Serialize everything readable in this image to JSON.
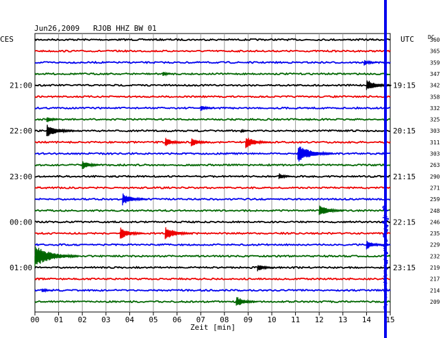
{
  "chart_data": {
    "type": "line",
    "title": "Jun26,2009   RJOB HHZ BW 01",
    "xlabel": "Zeit [min]",
    "left_label": "CES",
    "right_label": "UTC",
    "dc_header": "DC",
    "x_ticks": [
      "00",
      "01",
      "02",
      "03",
      "04",
      "05",
      "06",
      "07",
      "08",
      "09",
      "10",
      "11",
      "12",
      "13",
      "14",
      "15"
    ],
    "xlim": [
      0,
      15
    ],
    "left_time_labels": [
      {
        "trace": 4,
        "label": "21:00"
      },
      {
        "trace": 8,
        "label": "22:00"
      },
      {
        "trace": 12,
        "label": "23:00"
      },
      {
        "trace": 16,
        "label": "00:00"
      },
      {
        "trace": 20,
        "label": "01:00"
      }
    ],
    "right_time_labels": [
      {
        "trace": 4,
        "label": "19:15"
      },
      {
        "trace": 8,
        "label": "20:15"
      },
      {
        "trace": 12,
        "label": "21:15"
      },
      {
        "trace": 16,
        "label": "22:15"
      },
      {
        "trace": 20,
        "label": "23:15"
      }
    ],
    "trace_colors": [
      "#000000",
      "#ee0000",
      "#0000ee",
      "#006600"
    ],
    "dc_values": [
      "360",
      "365",
      "359",
      "347",
      "342",
      "358",
      "332",
      "325",
      "303",
      "311",
      "303",
      "263",
      "290",
      "271",
      "259",
      "248",
      "246",
      "235",
      "229",
      "232",
      "219",
      "217",
      "214",
      "209"
    ],
    "events": [
      {
        "trace": 2,
        "minute": 13.9,
        "amp": 5
      },
      {
        "trace": 3,
        "minute": 5.4,
        "amp": 4
      },
      {
        "trace": 4,
        "minute": 14.0,
        "amp": 9
      },
      {
        "trace": 6,
        "minute": 7.0,
        "amp": 5
      },
      {
        "trace": 7,
        "minute": 0.5,
        "amp": 5
      },
      {
        "trace": 8,
        "minute": 0.5,
        "amp": 10
      },
      {
        "trace": 8,
        "minute": 8.7,
        "amp": 3
      },
      {
        "trace": 9,
        "minute": 5.5,
        "amp": 7
      },
      {
        "trace": 9,
        "minute": 6.6,
        "amp": 7
      },
      {
        "trace": 9,
        "minute": 8.9,
        "amp": 9
      },
      {
        "trace": 10,
        "minute": 11.1,
        "amp": 13
      },
      {
        "trace": 11,
        "minute": 2.0,
        "amp": 7
      },
      {
        "trace": 12,
        "minute": 10.3,
        "amp": 5
      },
      {
        "trace": 14,
        "minute": 3.7,
        "amp": 9
      },
      {
        "trace": 15,
        "minute": 12.0,
        "amp": 9
      },
      {
        "trace": 17,
        "minute": 3.6,
        "amp": 9
      },
      {
        "trace": 17,
        "minute": 5.5,
        "amp": 10
      },
      {
        "trace": 18,
        "minute": 14.0,
        "amp": 7
      },
      {
        "trace": 19,
        "minute": 0.0,
        "amp": 16
      },
      {
        "trace": 20,
        "minute": 9.4,
        "amp": 6
      },
      {
        "trace": 22,
        "minute": 0.3,
        "amp": 4
      },
      {
        "trace": 23,
        "minute": 8.5,
        "amp": 8
      }
    ],
    "marker": {
      "minute": 15.0,
      "color": "#0000ee"
    }
  }
}
